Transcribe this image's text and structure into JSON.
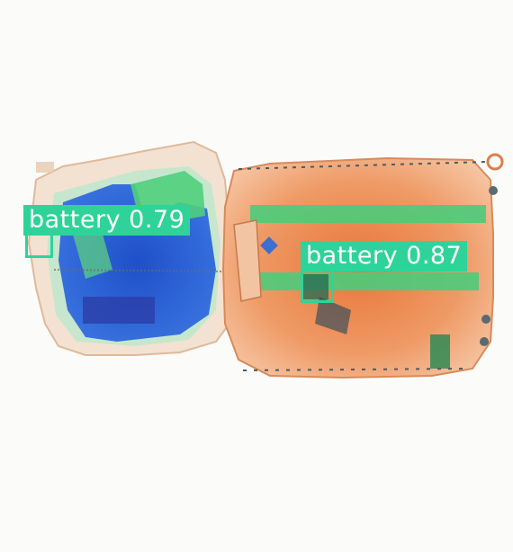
{
  "detections": [
    {
      "label": "battery",
      "score": "0.79",
      "color": "#2fd39a"
    },
    {
      "label": "battery",
      "score": "0.87",
      "color": "#2fd39a"
    }
  ]
}
